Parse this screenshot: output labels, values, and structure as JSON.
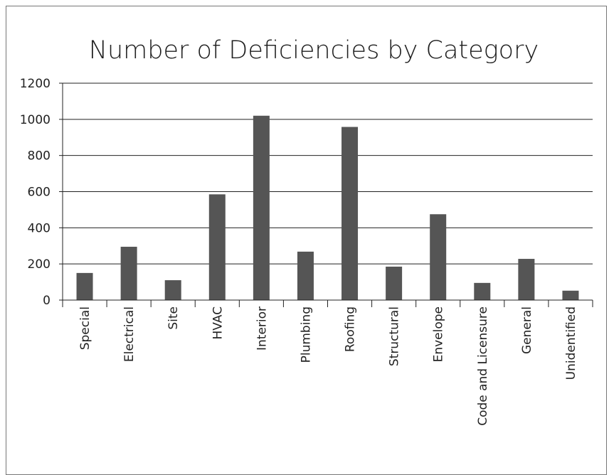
{
  "chart_data": {
    "type": "bar",
    "title": "Number of Deficiencies by Category",
    "xlabel": "",
    "ylabel": "",
    "categories": [
      "Special",
      "Electrical",
      "Site",
      "HVAC",
      "Interior",
      "Plumbing",
      "Roofing",
      "Structural",
      "Envelope",
      "Code and Licensure",
      "General",
      "Unidentified"
    ],
    "values": [
      150,
      295,
      110,
      585,
      1020,
      268,
      958,
      185,
      475,
      95,
      228,
      52
    ],
    "ylim": [
      0,
      1200
    ],
    "yticks": [
      "0",
      "200",
      "400",
      "600",
      "800",
      "1000",
      "1200"
    ],
    "grid": true,
    "bar_color": "#555555"
  }
}
